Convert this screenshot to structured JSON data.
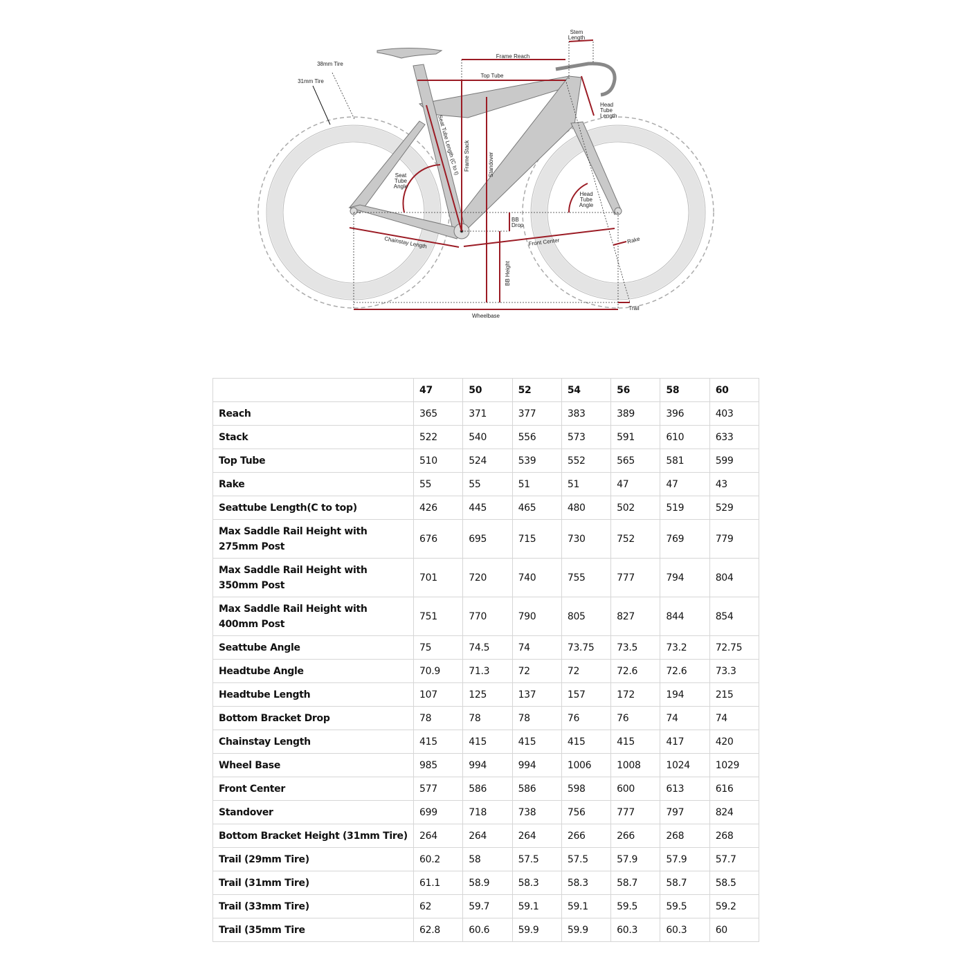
{
  "diagram": {
    "labels": {
      "stem_length_1": "Stem",
      "stem_length_2": "Length",
      "frame_reach": "Frame Reach",
      "top_tube": "Top Tube",
      "tire_38": "38mm Tire",
      "tire_31": "31mm Tire",
      "head_tube_length_1": "Head",
      "head_tube_length_2": "Tube",
      "head_tube_length_3": "Length",
      "seat_tube_length": "Seat Tube Length (C to t)",
      "frame_stack": "Frame Stack",
      "standover": "Standover",
      "seat_tube_angle_1": "Seat",
      "seat_tube_angle_2": "Tube",
      "seat_tube_angle_3": "Angle",
      "head_tube_angle_1": "Head",
      "head_tube_angle_2": "Tube",
      "head_tube_angle_3": "Angle",
      "bb_drop_1": "BB",
      "bb_drop_2": "Drop",
      "chainstay_length": "Chainstay Length",
      "front_center": "Front Center",
      "rake": "Rake",
      "bb_height": "BB Height",
      "trail": "Trail",
      "wheelbase": "Wheelbase"
    },
    "colors": {
      "dimension": "#9b1b24",
      "frame": "#c9c9c9",
      "tire": "#e6e6e6"
    }
  },
  "table": {
    "sizes": [
      "47",
      "50",
      "52",
      "54",
      "56",
      "58",
      "60"
    ],
    "rows": [
      {
        "label": "Reach",
        "values": [
          "365",
          "371",
          "377",
          "383",
          "389",
          "396",
          "403"
        ]
      },
      {
        "label": "Stack",
        "values": [
          "522",
          "540",
          "556",
          "573",
          "591",
          "610",
          "633"
        ]
      },
      {
        "label": "Top Tube",
        "values": [
          "510",
          "524",
          "539",
          "552",
          "565",
          "581",
          "599"
        ]
      },
      {
        "label": "Rake",
        "values": [
          "55",
          "55",
          "51",
          "51",
          "47",
          "47",
          "43"
        ]
      },
      {
        "label": "Seattube Length(C to top)",
        "values": [
          "426",
          "445",
          "465",
          "480",
          "502",
          "519",
          "529"
        ]
      },
      {
        "label": "Max Saddle Rail Height with 275mm Post",
        "values": [
          "676",
          "695",
          "715",
          "730",
          "752",
          "769",
          "779"
        ]
      },
      {
        "label": "Max Saddle Rail Height with 350mm Post",
        "values": [
          "701",
          "720",
          "740",
          "755",
          "777",
          "794",
          "804"
        ]
      },
      {
        "label": "Max Saddle Rail Height with 400mm Post",
        "values": [
          "751",
          "770",
          "790",
          "805",
          "827",
          "844",
          "854"
        ]
      },
      {
        "label": "Seattube Angle",
        "values": [
          "75",
          "74.5",
          "74",
          "73.75",
          "73.5",
          "73.2",
          "72.75"
        ]
      },
      {
        "label": "Headtube Angle",
        "values": [
          "70.9",
          "71.3",
          "72",
          "72",
          "72.6",
          "72.6",
          "73.3"
        ]
      },
      {
        "label": "Headtube Length",
        "values": [
          "107",
          "125",
          "137",
          "157",
          "172",
          "194",
          "215"
        ]
      },
      {
        "label": "Bottom Bracket Drop",
        "values": [
          "78",
          "78",
          "78",
          "76",
          "76",
          "74",
          "74"
        ]
      },
      {
        "label": "Chainstay Length",
        "values": [
          "415",
          "415",
          "415",
          "415",
          "415",
          "417",
          "420"
        ]
      },
      {
        "label": "Wheel Base",
        "values": [
          "985",
          "994",
          "994",
          "1006",
          "1008",
          "1024",
          "1029"
        ]
      },
      {
        "label": "Front Center",
        "values": [
          "577",
          "586",
          "586",
          "598",
          "600",
          "613",
          "616"
        ]
      },
      {
        "label": "Standover",
        "values": [
          "699",
          "718",
          "738",
          "756",
          "777",
          "797",
          "824"
        ]
      },
      {
        "label": "Bottom Bracket Height (31mm Tire)",
        "values": [
          "264",
          "264",
          "264",
          "266",
          "266",
          "268",
          "268"
        ]
      },
      {
        "label": "Trail (29mm Tire)",
        "values": [
          "60.2",
          "58",
          "57.5",
          "57.5",
          "57.9",
          "57.9",
          "57.7"
        ]
      },
      {
        "label": "Trail (31mm Tire)",
        "values": [
          "61.1",
          "58.9",
          "58.3",
          "58.3",
          "58.7",
          "58.7",
          "58.5"
        ]
      },
      {
        "label": "Trail (33mm Tire)",
        "values": [
          "62",
          "59.7",
          "59.1",
          "59.1",
          "59.5",
          "59.5",
          "59.2"
        ]
      },
      {
        "label": "Trail (35mm Tire",
        "values": [
          "62.8",
          "60.6",
          "59.9",
          "59.9",
          "60.3",
          "60.3",
          "60"
        ]
      }
    ]
  }
}
